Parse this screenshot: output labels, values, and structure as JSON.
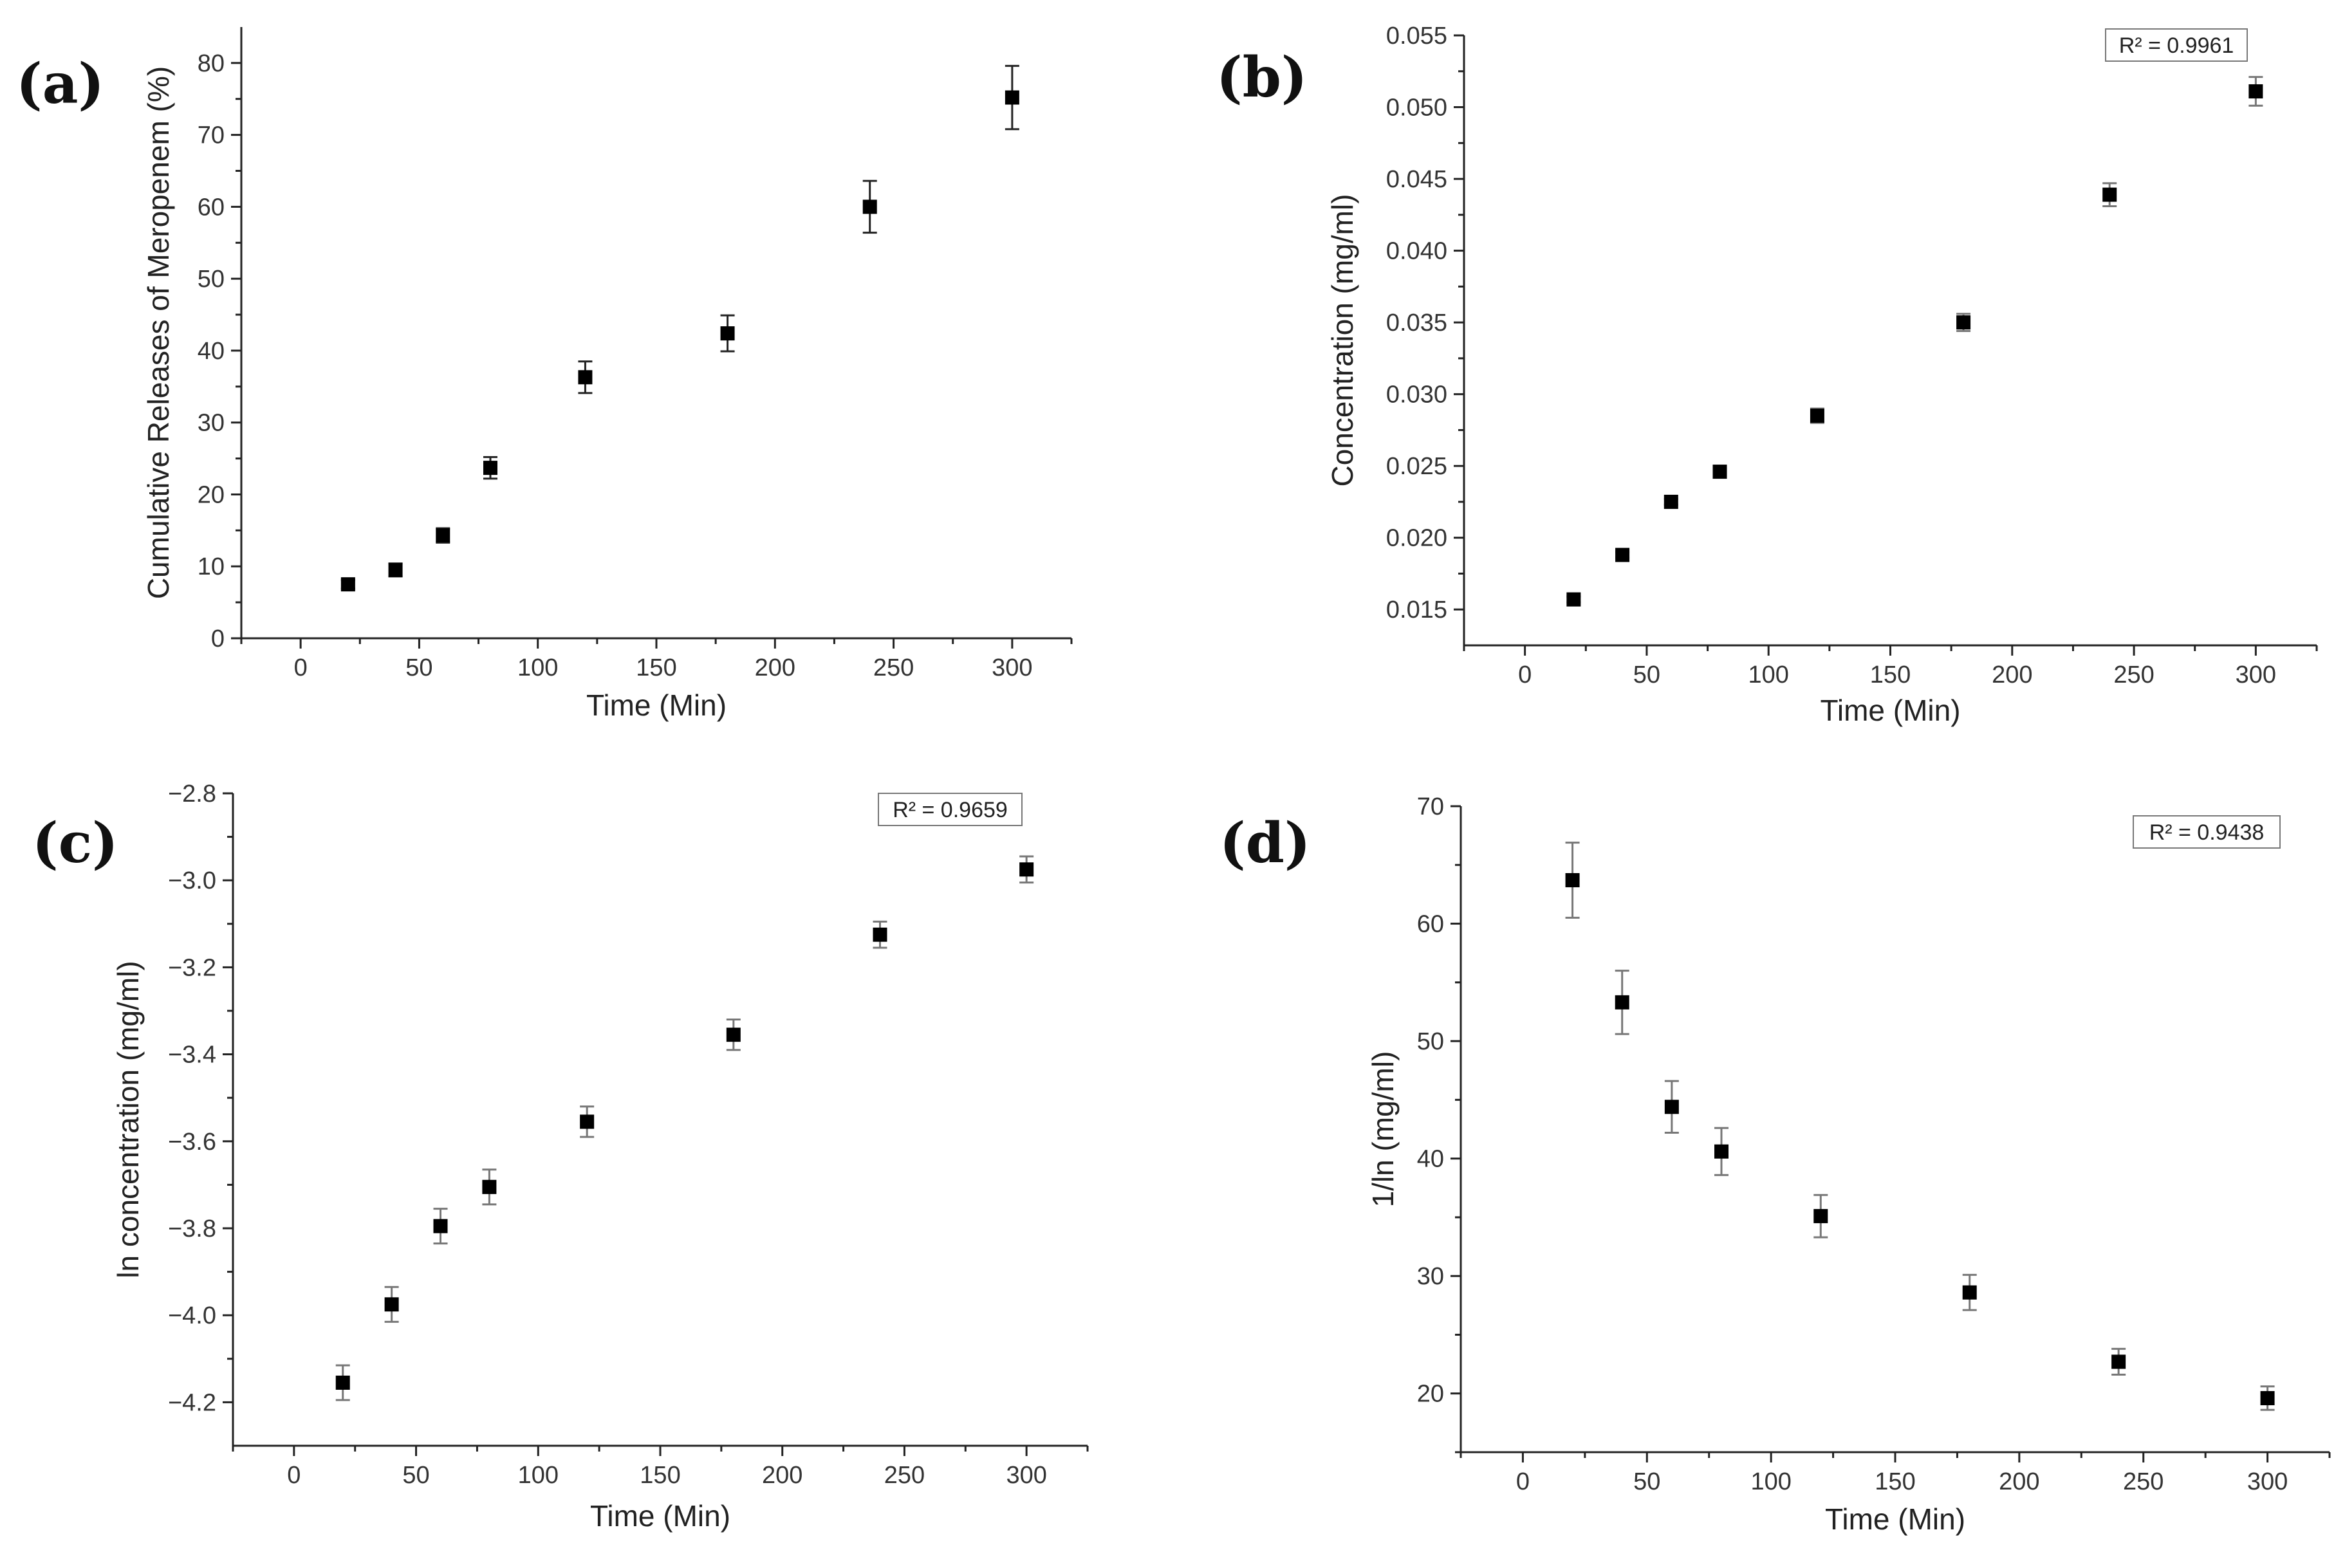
{
  "chart_data": [
    {
      "type": "scatter",
      "panel_label": "(a)",
      "title": "",
      "xlabel": "Time (Min)",
      "ylabel": "Cumulative Releases of Meropenem (%)",
      "xlim": [
        -25,
        325
      ],
      "ylim": [
        0,
        85
      ],
      "xticks": [
        0,
        50,
        100,
        150,
        200,
        250,
        300
      ],
      "yticks": [
        0,
        10,
        20,
        30,
        40,
        50,
        60,
        70,
        80
      ],
      "ytick_labels": [
        "0",
        "10",
        "20",
        "30",
        "40",
        "50",
        "60",
        "70",
        "80"
      ],
      "r2": "",
      "error_bar_color": "#222222",
      "series": [
        {
          "name": "Meropenem release",
          "x": [
            20,
            40,
            60,
            80,
            120,
            180,
            240,
            300
          ],
          "y": [
            7.5,
            9.5,
            14.3,
            23.7,
            36.3,
            42.4,
            60.0,
            75.2
          ],
          "err": [
            0.6,
            0.9,
            1.0,
            1.5,
            2.2,
            2.5,
            3.6,
            4.4
          ]
        }
      ]
    },
    {
      "type": "scatter",
      "panel_label": "(b)",
      "title": "",
      "xlabel": "Time (Min)",
      "ylabel": "Concentration (mg/ml)",
      "xlim": [
        -25,
        325
      ],
      "ylim": [
        0.0125,
        0.055
      ],
      "xticks": [
        0,
        50,
        100,
        150,
        200,
        250,
        300
      ],
      "yticks": [
        0.015,
        0.02,
        0.025,
        0.03,
        0.035,
        0.04,
        0.045,
        0.05,
        0.055
      ],
      "ytick_labels": [
        "0.015",
        "0.020",
        "0.025",
        "0.030",
        "0.035",
        "0.040",
        "0.045",
        "0.050",
        "0.055"
      ],
      "r2": "R² = 0.9961",
      "error_bar_color": "#777777",
      "series": [
        {
          "name": "Concentration",
          "x": [
            20,
            40,
            60,
            80,
            120,
            180,
            240,
            300
          ],
          "y": [
            0.0157,
            0.0188,
            0.0225,
            0.0246,
            0.0285,
            0.035,
            0.0439,
            0.0511
          ],
          "err": [
            0.0002,
            0.0002,
            0.0002,
            0.0003,
            0.0005,
            0.0006,
            0.0008,
            0.001
          ]
        }
      ]
    },
    {
      "type": "scatter",
      "panel_label": "(c)",
      "title": "",
      "xlabel": "Time (Min)",
      "ylabel": "ln concentration (mg/ml)",
      "xlim": [
        -25,
        325
      ],
      "ylim": [
        -4.3,
        -2.8
      ],
      "xticks": [
        0,
        50,
        100,
        150,
        200,
        250,
        300
      ],
      "yticks": [
        -4.2,
        -4.0,
        -3.8,
        -3.6,
        -3.4,
        -3.2,
        -3.0,
        -2.8
      ],
      "ytick_labels": [
        "−4.2",
        "−4.0",
        "−3.8",
        "−3.6",
        "−3.4",
        "−3.2",
        "−3.0",
        "−2.8"
      ],
      "r2": "R² = 0.9659",
      "error_bar_color": "#777777",
      "series": [
        {
          "name": "ln concentration",
          "x": [
            20,
            40,
            60,
            80,
            120,
            180,
            240,
            300
          ],
          "y": [
            -4.155,
            -3.975,
            -3.795,
            -3.705,
            -3.555,
            -3.355,
            -3.125,
            -2.975
          ],
          "err": [
            0.04,
            0.04,
            0.04,
            0.04,
            0.035,
            0.035,
            0.03,
            0.03
          ]
        }
      ]
    },
    {
      "type": "scatter",
      "panel_label": "(d)",
      "title": "",
      "xlabel": "Time (Min)",
      "ylabel": "1/ln (mg/ml)",
      "xlim": [
        -25,
        325
      ],
      "ylim": [
        15,
        70
      ],
      "xticks": [
        0,
        50,
        100,
        150,
        200,
        250,
        300
      ],
      "yticks": [
        20,
        30,
        40,
        50,
        60,
        70
      ],
      "ytick_labels": [
        "20",
        "30",
        "40",
        "50",
        "60",
        "70"
      ],
      "r2": "R² = 0.9438",
      "error_bar_color": "#777777",
      "series": [
        {
          "name": "1/ln",
          "x": [
            20,
            40,
            60,
            80,
            120,
            180,
            240,
            300
          ],
          "y": [
            63.7,
            53.3,
            44.4,
            40.6,
            35.1,
            28.6,
            22.7,
            19.6
          ],
          "err": [
            3.2,
            2.7,
            2.2,
            2.0,
            1.8,
            1.5,
            1.1,
            1.0
          ]
        }
      ]
    }
  ]
}
